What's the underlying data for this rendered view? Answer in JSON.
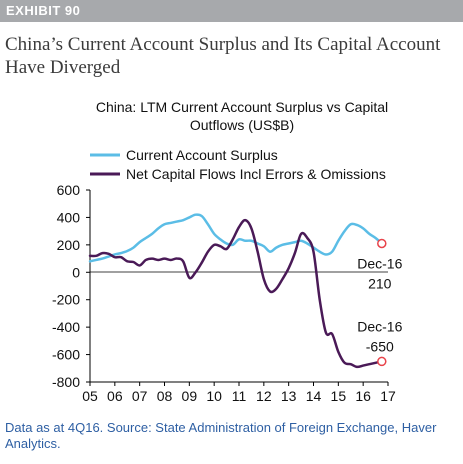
{
  "exhibit": {
    "label": "EXHIBIT 90"
  },
  "headline": "China’s Current Account Surplus and Its Capital Account Have Diverged",
  "source_note": "Data as at 4Q16. Source: State Administration of Foreign Exchange, Haver Analytics.",
  "colors": {
    "current_account": "#5bbde6",
    "capital_flows": "#4a1a57",
    "endpoint_marker": "#e8434a",
    "header_bar": "#a7a9ac"
  },
  "chart_data": {
    "type": "line",
    "title_lines": [
      "China: LTM Current Account Surplus vs Capital",
      "Outflows (US$B)"
    ],
    "ylim": [
      -800,
      600
    ],
    "y_ticks": [
      600,
      400,
      200,
      0,
      -200,
      -400,
      -600,
      -800
    ],
    "xlim": [
      2005,
      2017
    ],
    "x_tick_values": [
      2005,
      2006,
      2007,
      2008,
      2009,
      2010,
      2011,
      2012,
      2013,
      2014,
      2015,
      2016,
      2017
    ],
    "x_tick_labels": [
      "05",
      "06",
      "07",
      "08",
      "09",
      "10",
      "11",
      "12",
      "13",
      "14",
      "15",
      "16",
      "17"
    ],
    "grid": false,
    "legend_position": "top-left",
    "series": [
      {
        "name": "Current Account Surplus",
        "color": "#5bbde6",
        "x": [
          2005.0,
          2005.25,
          2005.5,
          2005.75,
          2006.0,
          2006.25,
          2006.5,
          2006.75,
          2007.0,
          2007.25,
          2007.5,
          2007.75,
          2008.0,
          2008.25,
          2008.5,
          2008.75,
          2009.0,
          2009.25,
          2009.5,
          2009.75,
          2010.0,
          2010.25,
          2010.5,
          2010.75,
          2011.0,
          2011.25,
          2011.5,
          2011.75,
          2012.0,
          2012.25,
          2012.5,
          2012.75,
          2013.0,
          2013.25,
          2013.5,
          2013.75,
          2014.0,
          2014.25,
          2014.5,
          2014.75,
          2015.0,
          2015.25,
          2015.5,
          2015.75,
          2016.0,
          2016.25,
          2016.5,
          2016.75
        ],
        "y": [
          80,
          90,
          100,
          115,
          130,
          140,
          155,
          180,
          220,
          250,
          280,
          320,
          350,
          360,
          370,
          380,
          400,
          420,
          410,
          350,
          280,
          240,
          210,
          200,
          240,
          230,
          230,
          210,
          190,
          150,
          180,
          200,
          210,
          220,
          230,
          210,
          180,
          150,
          130,
          150,
          230,
          300,
          350,
          345,
          320,
          280,
          250,
          210
        ]
      },
      {
        "name": "Net Capital Flows Incl Errors & Omissions",
        "color": "#4a1a57",
        "x": [
          2005.0,
          2005.25,
          2005.5,
          2005.75,
          2006.0,
          2006.25,
          2006.5,
          2006.75,
          2007.0,
          2007.25,
          2007.5,
          2007.75,
          2008.0,
          2008.25,
          2008.5,
          2008.75,
          2009.0,
          2009.25,
          2009.5,
          2009.75,
          2010.0,
          2010.25,
          2010.5,
          2010.75,
          2011.0,
          2011.25,
          2011.5,
          2011.75,
          2012.0,
          2012.25,
          2012.5,
          2012.75,
          2013.0,
          2013.25,
          2013.5,
          2013.75,
          2014.0,
          2014.25,
          2014.5,
          2014.75,
          2015.0,
          2015.25,
          2015.5,
          2015.75,
          2016.0,
          2016.25,
          2016.5,
          2016.75
        ],
        "y": [
          120,
          120,
          140,
          135,
          110,
          110,
          80,
          75,
          50,
          90,
          100,
          90,
          100,
          90,
          100,
          80,
          -40,
          0,
          70,
          150,
          200,
          190,
          170,
          240,
          330,
          380,
          320,
          150,
          -50,
          -140,
          -120,
          -50,
          30,
          140,
          280,
          250,
          150,
          -200,
          -440,
          -450,
          -580,
          -660,
          -670,
          -690,
          -680,
          -670,
          -660,
          -650
        ]
      }
    ],
    "annotations": [
      {
        "series": 0,
        "label_line1": "Dec-16",
        "label_line2": "210",
        "x": 2016.75,
        "y": 210
      },
      {
        "series": 1,
        "label_line1": "Dec-16",
        "label_line2": "-650",
        "x": 2016.75,
        "y": -650
      }
    ]
  }
}
